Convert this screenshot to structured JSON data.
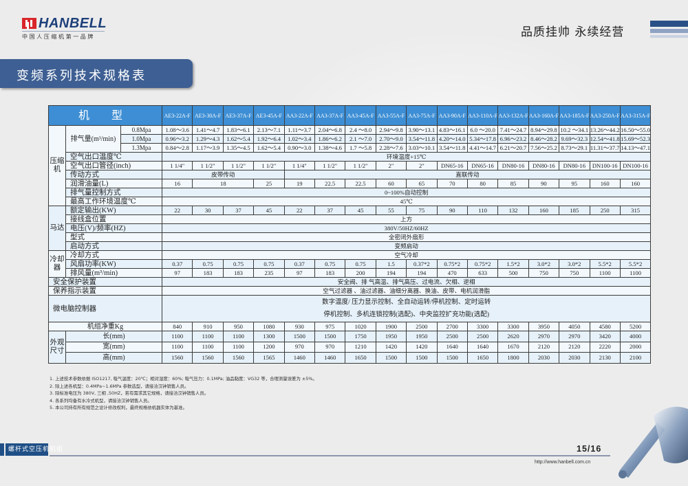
{
  "brand": {
    "name": "HANBELL",
    "tagline": "中国人压缩机第一品牌"
  },
  "slogan": "品质挂帅 永续经营",
  "page_title": "变频系列技术规格表",
  "colors": {
    "header_blue": "#3d8ed4",
    "title_bar": "#3e5f93",
    "logo_red": "#d8262b",
    "brand_blue": "#1d3f7a"
  },
  "table": {
    "header_label": "机 型",
    "models": [
      "AE3-22A-F",
      "AE3-30A-F",
      "AE3-37A-F",
      "AE3-45A-F",
      "AA3-22A-F",
      "AA3-37A-F",
      "AA3-45A-F",
      "AA3-55A-F",
      "AA3-75A-F",
      "AA3-90A-F",
      "AA3-110A-F",
      "AA3-132A-F",
      "AA3-160A-F",
      "AA3-185A-F",
      "AA3-250A-F",
      "AA3-315A-F"
    ],
    "compressor": {
      "group": "压缩机",
      "displacement_label": "排气量(m³/min)",
      "pressures": [
        {
          "p": "0.8Mpa",
          "values": [
            "1.08～3.6",
            "1.41～4.7",
            "1.83～6.1",
            "2.13～7.1",
            "1.11～3.7",
            "2.04～6.8",
            "2.4 ～8.0",
            "2.94～9.8",
            "3.90～13.1",
            "4.83～16.1",
            "6.0 ～20.0",
            "7.41～24.7",
            "8.94～29.8",
            "10.2 ～34.1",
            "13.26～44.2",
            "16.50～55.0"
          ]
        },
        {
          "p": "1.0Mpa",
          "values": [
            "0.96～3.2",
            "1.29～4.3",
            "1.62～5.4",
            "1.92～6.4",
            "1.02～3.4",
            "1.86～6.2",
            "2.1 ～7.0",
            "2.70～9.0",
            "3.54～11.8",
            "4.20～14.0",
            "5.34～17.8",
            "6.96～23.2",
            "8.46～28.2",
            "9.69～32.3",
            "12.54～41.8",
            "15.69～52.3"
          ]
        },
        {
          "p": "1.3Mpa",
          "values": [
            "0.84～2.8",
            "1.17～3.9",
            "1.35～4.5",
            "1.62～5.4",
            "0.90～3.0",
            "1.38～4.6",
            "1.7 ～5.8",
            "2.28～7.6",
            "3.03～10.1",
            "3.54～11.8",
            "4.41～14.7",
            "6.21～20.7",
            "7.56～25.2",
            "8.73～29.1",
            "11.31～37.7",
            "14.13～47.1"
          ]
        }
      ],
      "rows": [
        {
          "label": "空气出口温度℃",
          "cells": [
            {
              "v": "环境温度+15℃",
              "span": 16
            }
          ]
        },
        {
          "label": "空气出口管径(inch)",
          "cells": [
            {
              "v": "1 1/4\""
            },
            {
              "v": "1 1/2\""
            },
            {
              "v": "1 1/2\""
            },
            {
              "v": "1 1/2\""
            },
            {
              "v": "1 1/4\""
            },
            {
              "v": "1 1/2\""
            },
            {
              "v": "1 1/2\""
            },
            {
              "v": "2\""
            },
            {
              "v": "2\""
            },
            {
              "v": "DN65-16"
            },
            {
              "v": "DN65-16"
            },
            {
              "v": "DN80-16"
            },
            {
              "v": "DN80-16"
            },
            {
              "v": "DN80-16"
            },
            {
              "v": "DN100-16"
            },
            {
              "v": "DN100-16"
            }
          ]
        },
        {
          "label": "传动方式",
          "cells": [
            {
              "v": "皮带传动",
              "span": 4
            },
            {
              "v": "直联传动",
              "span": 12
            }
          ]
        },
        {
          "label": "润滑油量(L)",
          "cells": [
            {
              "v": "16"
            },
            {
              "v": "18",
              "span": 2
            },
            {
              "v": "25"
            },
            {
              "v": "19"
            },
            {
              "v": "22.5"
            },
            {
              "v": "22.5"
            },
            {
              "v": "60"
            },
            {
              "v": "65"
            },
            {
              "v": "70"
            },
            {
              "v": "80"
            },
            {
              "v": "85"
            },
            {
              "v": "90"
            },
            {
              "v": "95"
            },
            {
              "v": "160"
            },
            {
              "v": "160"
            }
          ]
        },
        {
          "label": "排气量控制方式",
          "cells": [
            {
              "v": "0~100%自动控制",
              "span": 16
            }
          ]
        },
        {
          "label": "最高工作环境温度℃",
          "cells": [
            {
              "v": "45℃",
              "span": 16
            }
          ]
        }
      ]
    },
    "motor": {
      "group": "马达",
      "rows": [
        {
          "label": "额定输出(KW)",
          "cells": [
            {
              "v": "22"
            },
            {
              "v": "30"
            },
            {
              "v": "37"
            },
            {
              "v": "45"
            },
            {
              "v": "22"
            },
            {
              "v": "37"
            },
            {
              "v": "45"
            },
            {
              "v": "55"
            },
            {
              "v": "75"
            },
            {
              "v": "90"
            },
            {
              "v": "110"
            },
            {
              "v": "132"
            },
            {
              "v": "160"
            },
            {
              "v": "185"
            },
            {
              "v": "250"
            },
            {
              "v": "315"
            }
          ]
        },
        {
          "label": "接线盒位置",
          "cells": [
            {
              "v": "上方",
              "span": 16
            }
          ]
        },
        {
          "label": "电压(V)/频率(HZ)",
          "cells": [
            {
              "v": "380V/50HZ/60HZ",
              "span": 16
            }
          ]
        },
        {
          "label": "型式",
          "cells": [
            {
              "v": "全密闭外扇形",
              "span": 16
            }
          ]
        },
        {
          "label": "启动方式",
          "cells": [
            {
              "v": "变频启动",
              "span": 16
            }
          ]
        }
      ]
    },
    "cooler": {
      "group": "冷却器",
      "rows": [
        {
          "label": "冷却方式",
          "cells": [
            {
              "v": "空气冷却",
              "span": 16
            }
          ]
        },
        {
          "label": "风扇功率(KW)",
          "cells": [
            {
              "v": "0.37"
            },
            {
              "v": "0.75"
            },
            {
              "v": "0.75"
            },
            {
              "v": "0.75"
            },
            {
              "v": "0.37"
            },
            {
              "v": "0.75"
            },
            {
              "v": "0.75"
            },
            {
              "v": "1.5"
            },
            {
              "v": "0.37*2"
            },
            {
              "v": "0.75*2"
            },
            {
              "v": "0.75*2"
            },
            {
              "v": "1.5*2"
            },
            {
              "v": "3.0*2"
            },
            {
              "v": "3.0*2"
            },
            {
              "v": "5.5*2"
            },
            {
              "v": "5.5*2"
            }
          ]
        },
        {
          "label": "排风量(m³/min)",
          "cells": [
            {
              "v": "97"
            },
            {
              "v": "183"
            },
            {
              "v": "183"
            },
            {
              "v": "235"
            },
            {
              "v": "97"
            },
            {
              "v": "183"
            },
            {
              "v": "200"
            },
            {
              "v": "194"
            },
            {
              "v": "194"
            },
            {
              "v": "470"
            },
            {
              "v": "633"
            },
            {
              "v": "500"
            },
            {
              "v": "750"
            },
            {
              "v": "750"
            },
            {
              "v": "1100"
            },
            {
              "v": "1100"
            }
          ]
        }
      ]
    },
    "general": [
      {
        "label": "安全保护装置",
        "cells": [
          {
            "v": "安全阀、排  气高温、排气高压、过电流、欠相、逆相",
            "span": 16
          }
        ]
      },
      {
        "label": "保养指示装置",
        "cells": [
          {
            "v": "空气过滤器 、油过滤器、油细分离器、换油、皮带、电机润滑脂",
            "span": 16
          }
        ]
      },
      {
        "label": "微电脑控制器",
        "multi": true,
        "cells": [
          {
            "v": "数字温度/ 压力显示控制、全自动运转/停机控制、定时运转",
            "v2": "停机控制、多机连锁控制(选配)、中央监控扩充功能(选配)",
            "span": 16
          }
        ]
      },
      {
        "label": "机组净重Kg",
        "center": true,
        "cells": [
          {
            "v": "840"
          },
          {
            "v": "910"
          },
          {
            "v": "950"
          },
          {
            "v": "1080"
          },
          {
            "v": "930"
          },
          {
            "v": "975"
          },
          {
            "v": "1020"
          },
          {
            "v": "1900"
          },
          {
            "v": "2500"
          },
          {
            "v": "2700"
          },
          {
            "v": "3300"
          },
          {
            "v": "3300"
          },
          {
            "v": "3950"
          },
          {
            "v": "4050"
          },
          {
            "v": "4580"
          },
          {
            "v": "5200"
          }
        ]
      }
    ],
    "dimensions": {
      "group": "外观尺寸",
      "rows": [
        {
          "label": "长(mm)",
          "cells": [
            {
              "v": "1100"
            },
            {
              "v": "1100"
            },
            {
              "v": "1100"
            },
            {
              "v": "1300"
            },
            {
              "v": "1500"
            },
            {
              "v": "1500"
            },
            {
              "v": "1750"
            },
            {
              "v": "1950"
            },
            {
              "v": "1950"
            },
            {
              "v": "2500"
            },
            {
              "v": "2500"
            },
            {
              "v": "2620"
            },
            {
              "v": "2970"
            },
            {
              "v": "2970"
            },
            {
              "v": "3420"
            },
            {
              "v": "4000"
            }
          ]
        },
        {
          "label": "宽(mm)",
          "cells": [
            {
              "v": "1100"
            },
            {
              "v": "1100"
            },
            {
              "v": "1100"
            },
            {
              "v": "1200"
            },
            {
              "v": "970"
            },
            {
              "v": "970"
            },
            {
              "v": "1210"
            },
            {
              "v": "1420"
            },
            {
              "v": "1420"
            },
            {
              "v": "1640"
            },
            {
              "v": "1640"
            },
            {
              "v": "1670"
            },
            {
              "v": "2120"
            },
            {
              "v": "2120"
            },
            {
              "v": "2220"
            },
            {
              "v": "2000"
            }
          ]
        },
        {
          "label": "高(mm)",
          "cells": [
            {
              "v": "1560"
            },
            {
              "v": "1560"
            },
            {
              "v": "1560"
            },
            {
              "v": "1565"
            },
            {
              "v": "1460"
            },
            {
              "v": "1460"
            },
            {
              "v": "1650"
            },
            {
              "v": "1500"
            },
            {
              "v": "1500"
            },
            {
              "v": "1500"
            },
            {
              "v": "1650"
            },
            {
              "v": "1800"
            },
            {
              "v": "2030"
            },
            {
              "v": "2030"
            },
            {
              "v": "2130"
            },
            {
              "v": "2100"
            }
          ]
        }
      ]
    }
  },
  "notes": [
    "1. 上述技术参数依据 ISO1217, 吸气温度：20℃；相对湿度：60%; 吸气压力：0.1MPa; 油品黏度：VG32 等，合理测量误差为 ±5%。",
    "2. 除上述各机型：0.4MPa~1.6MPa 参数选型，请接洽汉钟销售人员。",
    "3. 除标准电压为 380V, 三相 ,50HZ，若有需求其它规格，请接洽汉钟销售人员。",
    "4. 各系列均备有水冷式机型，请接洽汉钟销售人员。",
    "5. 本公司持有所有规范之设计修改权利，最终规格依机器实体为基准。"
  ],
  "footer": {
    "section": "螺杆式空压机机组",
    "page": "15/16",
    "url": "http://www.hanbell.com.cn"
  }
}
